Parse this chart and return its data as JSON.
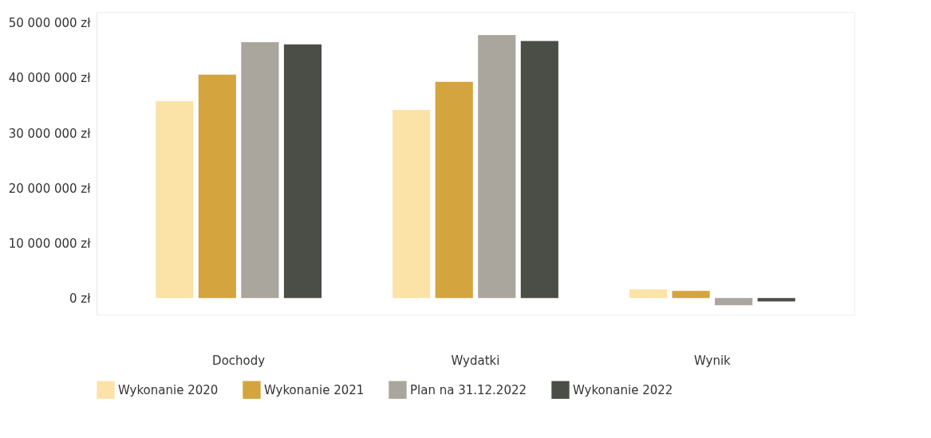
{
  "chart_data": {
    "type": "bar",
    "categories": [
      "Dochody",
      "Wydatki",
      "Wynik"
    ],
    "series": [
      {
        "name": "Wykonanie 2020",
        "color": "#fbe3a8",
        "values": [
          35800000,
          34200000,
          1600000
        ]
      },
      {
        "name": "Wykonanie 2021",
        "color": "#d4a43f",
        "values": [
          40600000,
          39300000,
          1300000
        ]
      },
      {
        "name": "Plan na 31.12.2022",
        "color": "#aaa59d",
        "values": [
          46500000,
          47800000,
          -1300000
        ]
      },
      {
        "name": "Wykonanie 2022",
        "color": "#4b4d47",
        "values": [
          46100000,
          46700000,
          -600000
        ]
      }
    ],
    "ylim": [
      -3000000,
      52000000
    ],
    "yticks": [
      {
        "value": 0,
        "label": "0 zł"
      },
      {
        "value": 10000000,
        "label": "10 000 000 zł"
      },
      {
        "value": 20000000,
        "label": "20 000 000 zł"
      },
      {
        "value": 30000000,
        "label": "30 000 000 zł"
      },
      {
        "value": 40000000,
        "label": "40 000 000 zł"
      },
      {
        "value": 50000000,
        "label": "50 000 000 zł"
      }
    ],
    "grid": false,
    "legend": "bottom"
  }
}
